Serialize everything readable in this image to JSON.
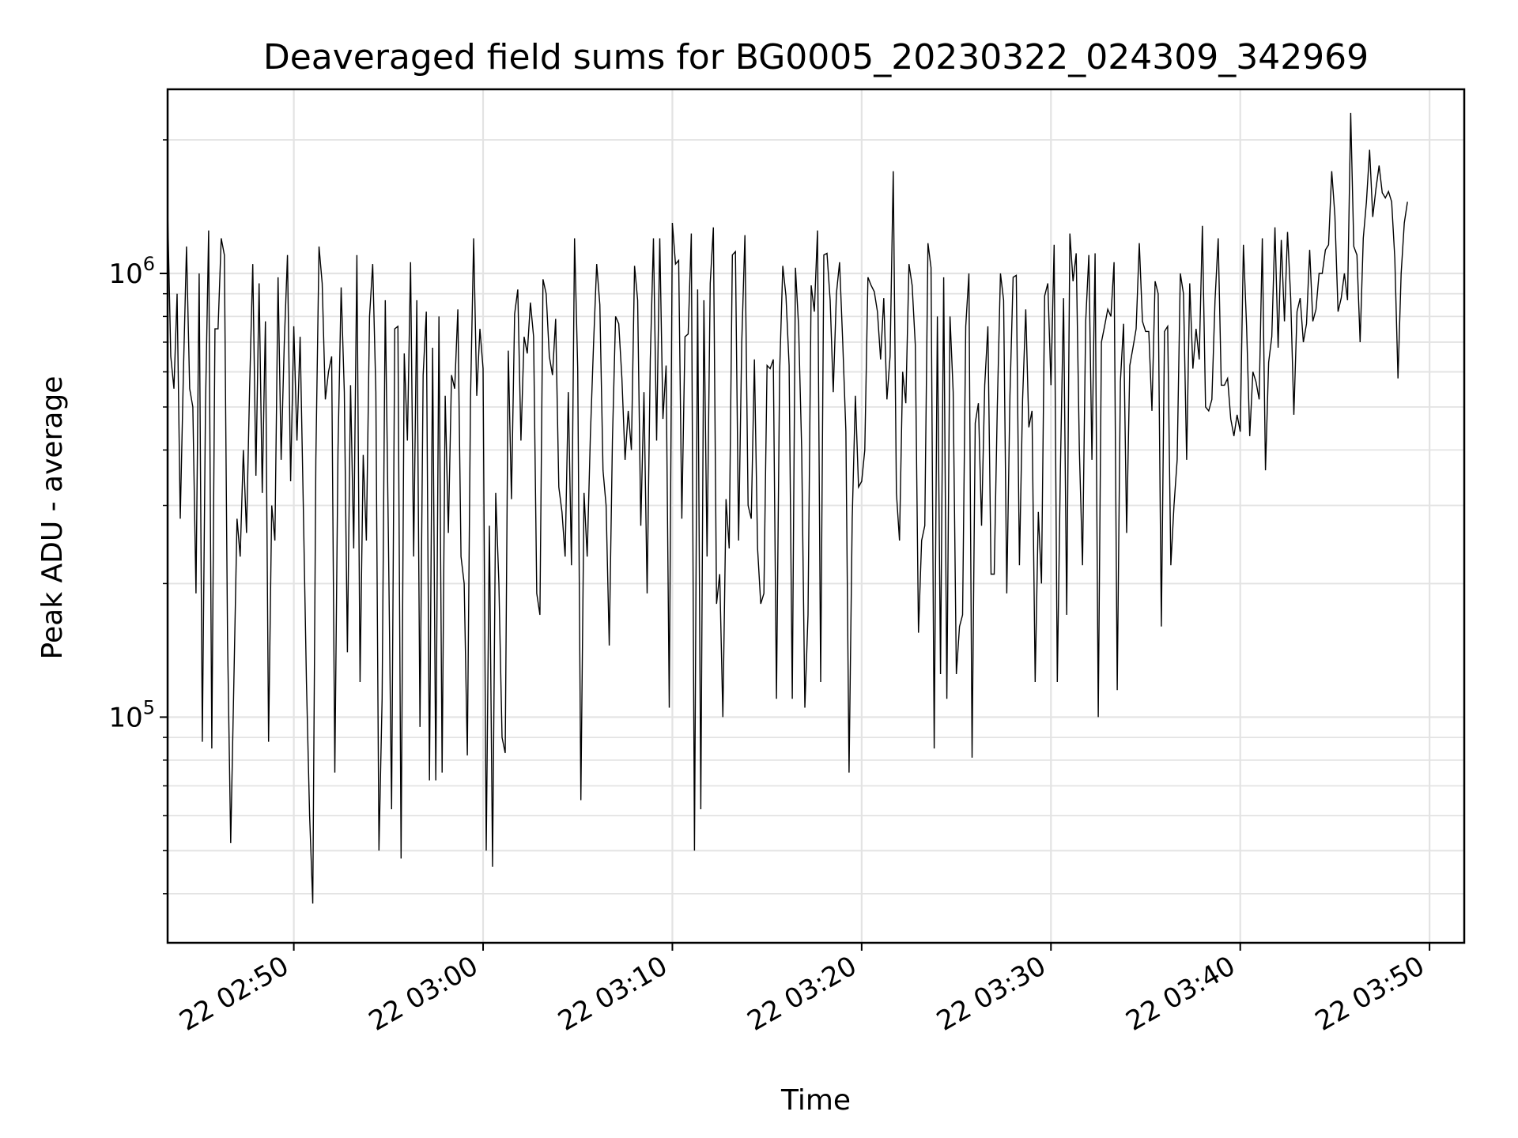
{
  "chart_data": {
    "type": "line",
    "title": "Deaveraged field sums for BG0005_20230322_024309_342969",
    "xlabel": "Time",
    "ylabel": "Peak ADU - average",
    "yscale": "log",
    "xlim": [
      "2023-03-22T02:43:20",
      "2023-03-22T03:51:50"
    ],
    "ylim": [
      31000,
      2600000
    ],
    "grid": true,
    "line_color": "#000000",
    "x_ticks": [
      {
        "value": "2023-03-22T02:50:00",
        "label": "22 02:50"
      },
      {
        "value": "2023-03-22T03:00:00",
        "label": "22 03:00"
      },
      {
        "value": "2023-03-22T03:10:00",
        "label": "22 03:10"
      },
      {
        "value": "2023-03-22T03:20:00",
        "label": "22 03:20"
      },
      {
        "value": "2023-03-22T03:30:00",
        "label": "22 03:30"
      },
      {
        "value": "2023-03-22T03:40:00",
        "label": "22 03:40"
      },
      {
        "value": "2023-03-22T03:50:00",
        "label": "22 03:50"
      }
    ],
    "y_ticks": [
      {
        "value": 100000,
        "base": "10",
        "exp": "5"
      },
      {
        "value": 1000000,
        "base": "10",
        "exp": "6"
      }
    ],
    "series": [
      {
        "x_start": "2023-03-22T02:43:20",
        "x_step_seconds": 10,
        "y": [
          1400000,
          650000,
          550000,
          900000,
          280000,
          600000,
          1150000,
          550000,
          500000,
          190000,
          1000000,
          88000,
          500000,
          1250000,
          85000,
          750000,
          750000,
          1200000,
          1100000,
          150000,
          52000,
          120000,
          280000,
          230000,
          400000,
          260000,
          550000,
          1050000,
          350000,
          950000,
          320000,
          780000,
          88000,
          300000,
          250000,
          980000,
          380000,
          700000,
          1100000,
          340000,
          760000,
          420000,
          720000,
          300000,
          120000,
          60000,
          38000,
          380000,
          1150000,
          950000,
          520000,
          600000,
          650000,
          75000,
          400000,
          930000,
          540000,
          140000,
          560000,
          240000,
          1100000,
          120000,
          390000,
          250000,
          800000,
          1050000,
          540000,
          50000,
          110000,
          870000,
          250000,
          62000,
          750000,
          760000,
          48000,
          660000,
          420000,
          1060000,
          230000,
          870000,
          95000,
          590000,
          820000,
          72000,
          680000,
          72000,
          800000,
          75000,
          530000,
          260000,
          590000,
          550000,
          830000,
          230000,
          200000,
          82000,
          520000,
          1200000,
          530000,
          750000,
          610000,
          50000,
          270000,
          46000,
          320000,
          200000,
          90000,
          83000,
          670000,
          310000,
          810000,
          920000,
          420000,
          720000,
          660000,
          860000,
          720000,
          190000,
          170000,
          970000,
          900000,
          650000,
          590000,
          790000,
          330000,
          290000,
          230000,
          540000,
          220000,
          1200000,
          610000,
          65000,
          320000,
          230000,
          430000,
          690000,
          1050000,
          850000,
          360000,
          300000,
          145000,
          420000,
          800000,
          770000,
          580000,
          380000,
          490000,
          400000,
          1040000,
          870000,
          270000,
          540000,
          190000,
          640000,
          1200000,
          420000,
          1200000,
          470000,
          620000,
          105000,
          1300000,
          1050000,
          1070000,
          280000,
          720000,
          730000,
          1230000,
          50000,
          920000,
          62000,
          870000,
          230000,
          950000,
          1270000,
          180000,
          210000,
          100000,
          310000,
          240000,
          1100000,
          1120000,
          250000,
          700000,
          1220000,
          300000,
          280000,
          640000,
          240000,
          180000,
          190000,
          620000,
          610000,
          640000,
          110000,
          600000,
          1040000,
          890000,
          620000,
          110000,
          1030000,
          760000,
          400000,
          105000,
          170000,
          940000,
          820000,
          1250000,
          120000,
          1100000,
          1110000,
          870000,
          540000,
          900000,
          1060000,
          700000,
          440000,
          75000,
          280000,
          530000,
          330000,
          340000,
          400000,
          980000,
          940000,
          910000,
          820000,
          640000,
          880000,
          520000,
          650000,
          1700000,
          320000,
          250000,
          600000,
          510000,
          1050000,
          940000,
          690000,
          155000,
          250000,
          270000,
          1170000,
          1030000,
          85000,
          800000,
          125000,
          980000,
          110000,
          800000,
          540000,
          125000,
          160000,
          170000,
          760000,
          1000000,
          81000,
          460000,
          510000,
          270000,
          560000,
          760000,
          210000,
          210000,
          500000,
          1000000,
          870000,
          190000,
          530000,
          980000,
          990000,
          220000,
          520000,
          830000,
          450000,
          490000,
          120000,
          290000,
          200000,
          890000,
          950000,
          560000,
          1160000,
          120000,
          360000,
          880000,
          170000,
          1230000,
          960000,
          1110000,
          400000,
          220000,
          780000,
          1100000,
          380000,
          1110000,
          100000,
          700000,
          760000,
          830000,
          800000,
          1060000,
          115000,
          570000,
          770000,
          260000,
          620000,
          680000,
          750000,
          1170000,
          780000,
          740000,
          740000,
          490000,
          960000,
          900000,
          160000,
          740000,
          760000,
          220000,
          300000,
          380000,
          1000000,
          900000,
          380000,
          950000,
          610000,
          750000,
          640000,
          1280000,
          500000,
          490000,
          520000,
          870000,
          1200000,
          560000,
          560000,
          580000,
          470000,
          430000,
          480000,
          440000,
          1160000,
          760000,
          430000,
          600000,
          570000,
          520000,
          1200000,
          360000,
          630000,
          720000,
          1270000,
          680000,
          1190000,
          780000,
          1240000,
          880000,
          480000,
          820000,
          880000,
          700000,
          770000,
          1130000,
          780000,
          830000,
          1000000,
          1000000,
          1130000,
          1160000,
          1700000,
          1350000,
          820000,
          880000,
          1000000,
          870000,
          2300000,
          1150000,
          1100000,
          700000,
          1200000,
          1450000,
          1900000,
          1340000,
          1550000,
          1750000,
          1520000,
          1480000,
          1530000,
          1450000,
          1080000,
          580000,
          1000000,
          1300000,
          1450000
        ]
      }
    ]
  }
}
